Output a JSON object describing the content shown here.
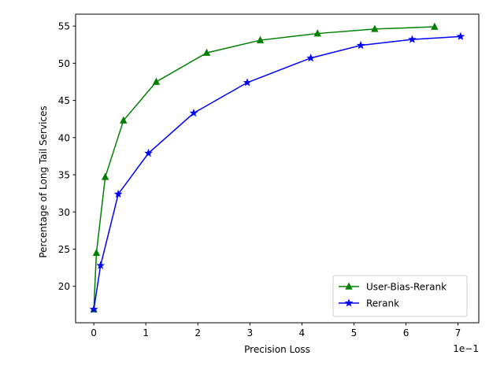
{
  "chart_data": {
    "type": "line",
    "title": "",
    "xlabel": "Precision Loss",
    "ylabel": "Percentage of Long Tail Services",
    "x_offset_label": "1e−1",
    "xlim": [
      -0.35,
      7.4
    ],
    "ylim": [
      15.1,
      56.6
    ],
    "x_ticks": [
      0,
      1,
      2,
      3,
      4,
      5,
      6,
      7
    ],
    "y_ticks": [
      20,
      25,
      30,
      35,
      40,
      45,
      50,
      55
    ],
    "grid": false,
    "legend_position": "lower-right",
    "series": [
      {
        "name": "User-Bias-Rerank",
        "color": "#008000",
        "marker": "triangle",
        "x": [
          0.0,
          0.05,
          0.22,
          0.57,
          1.2,
          2.17,
          3.2,
          4.3,
          5.4,
          6.55
        ],
        "y": [
          16.9,
          24.5,
          34.7,
          42.3,
          47.5,
          51.4,
          53.1,
          54.0,
          54.6,
          54.9
        ]
      },
      {
        "name": "Rerank",
        "color": "#0000ff",
        "marker": "star",
        "x": [
          0.0,
          0.13,
          0.47,
          1.05,
          1.92,
          2.95,
          4.17,
          5.13,
          6.12,
          7.05
        ],
        "y": [
          16.9,
          22.8,
          32.4,
          37.9,
          43.3,
          47.4,
          50.7,
          52.4,
          53.2,
          53.6
        ]
      }
    ]
  }
}
